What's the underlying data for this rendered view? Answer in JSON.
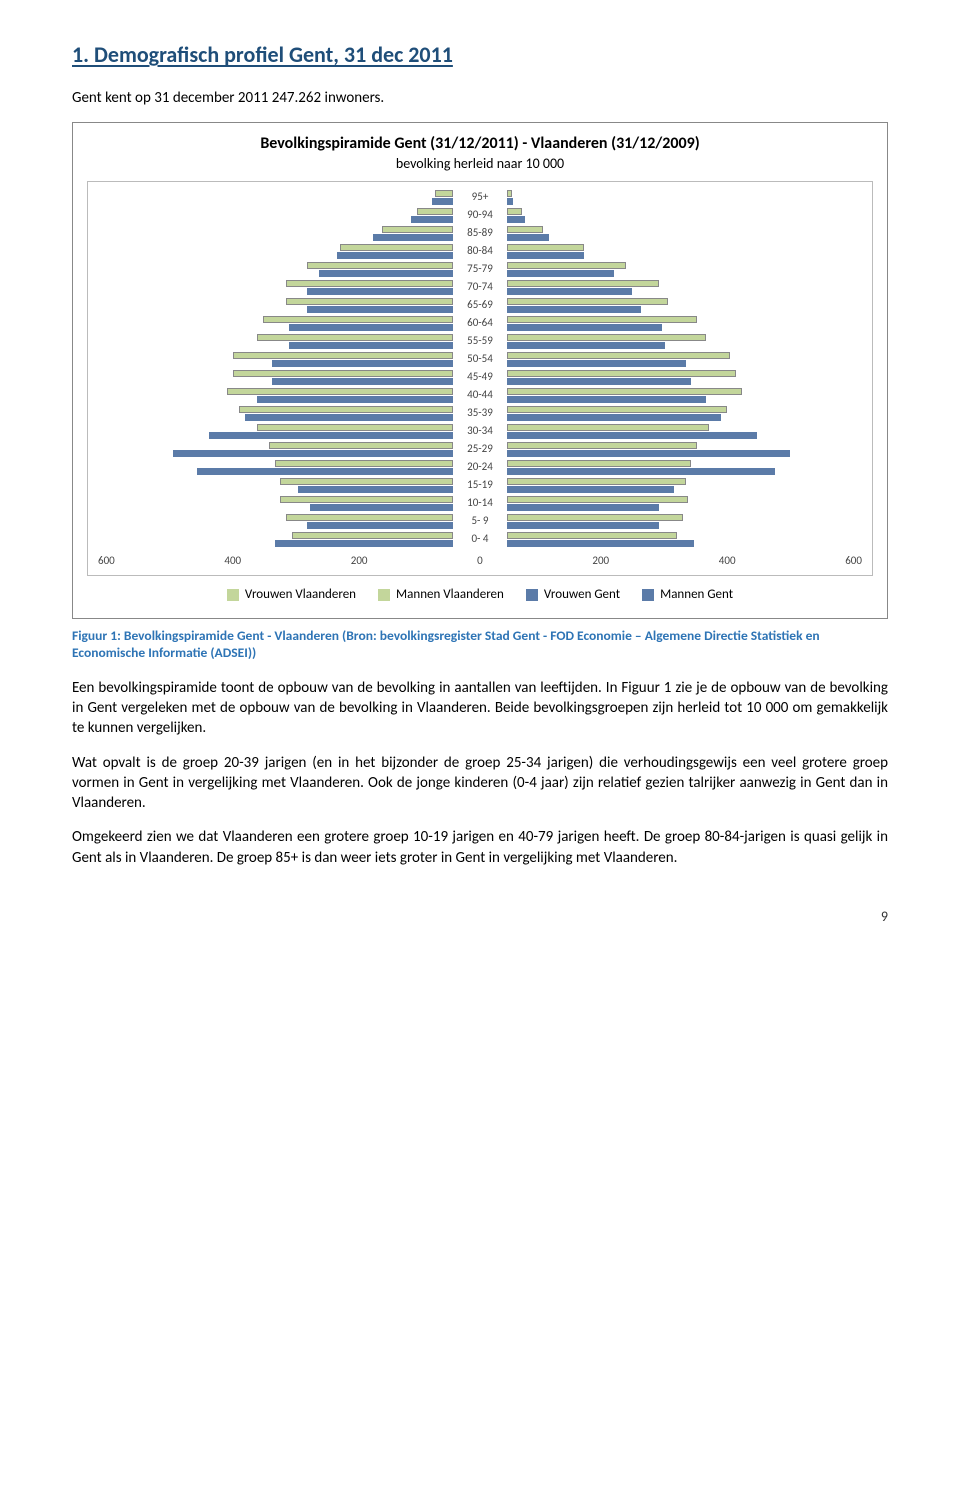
{
  "section": {
    "heading": "1. Demografisch profiel Gent, 31 dec 2011",
    "intro": "Gent kent op 31 december 2011 247.262 inwoners."
  },
  "chart": {
    "type": "population-pyramid",
    "title": "Bevolkingspiramide Gent (31/12/2011) - Vlaanderen (31/12/2009)",
    "subtitle": "bevolking herleid naar 10 000",
    "age_labels": [
      "95+",
      "90-94",
      "85-89",
      "80-84",
      "75-79",
      "70-74",
      "65-69",
      "60-64",
      "55-59",
      "50-54",
      "45-49",
      "40-44",
      "35-39",
      "30-34",
      "25-29",
      "20-24",
      "15-19",
      "10-14",
      "5- 9",
      "0- 4"
    ],
    "axis_ticks": [
      "600",
      "400",
      "200",
      "0",
      "200",
      "400",
      "600"
    ],
    "axis_max": 600,
    "series_colors": {
      "vrouwen_vlaanderen": "#c3d69b",
      "mannen_vlaanderen": "#c3d69b",
      "vrouwen_gent": "#5b7ba8",
      "mannen_gent": "#5b7ba8"
    },
    "bar_border": "#888888",
    "background": "#ffffff",
    "women_vlaanderen": [
      30,
      60,
      120,
      190,
      245,
      280,
      280,
      320,
      330,
      370,
      370,
      380,
      360,
      330,
      310,
      300,
      290,
      290,
      280,
      270
    ],
    "women_gent": [
      35,
      70,
      135,
      195,
      225,
      245,
      245,
      275,
      275,
      305,
      305,
      330,
      350,
      410,
      470,
      430,
      260,
      240,
      245,
      300
    ],
    "men_vlaanderen": [
      8,
      25,
      60,
      130,
      200,
      255,
      270,
      320,
      335,
      375,
      385,
      395,
      370,
      340,
      320,
      310,
      300,
      305,
      295,
      285
    ],
    "men_gent": [
      10,
      30,
      70,
      130,
      180,
      210,
      225,
      260,
      265,
      300,
      310,
      335,
      360,
      420,
      475,
      450,
      280,
      255,
      255,
      315
    ],
    "legend": {
      "vrouwen_vlaanderen": "Vrouwen Vlaanderen",
      "mannen_vlaanderen": "Mannen Vlaanderen",
      "vrouwen_gent": "Vrouwen Gent",
      "mannen_gent": "Mannen Gent"
    }
  },
  "figure_caption": "Figuur 1: Bevolkingspiramide Gent - Vlaanderen (Bron: bevolkingsregister Stad Gent - FOD Economie – Algemene Directie Statistiek en Economische Informatie (ADSEI))",
  "body": {
    "p1": "Een bevolkingspiramide toont de opbouw van de bevolking in aantallen van leeftijden. In Figuur 1 zie je de opbouw van de bevolking in Gent vergeleken met de opbouw van de bevolking in Vlaanderen. Beide bevolkingsgroepen zijn herleid tot 10 000 om gemakkelijk te kunnen vergelijken.",
    "p2": "Wat opvalt is de groep 20-39 jarigen (en in het bijzonder de groep 25-34 jarigen) die verhoudingsgewijs een veel grotere groep vormen in Gent in vergelijking met Vlaanderen. Ook de jonge kinderen (0-4 jaar) zijn relatief gezien talrijker aanwezig in Gent dan in Vlaanderen.",
    "p3": "Omgekeerd zien we dat Vlaanderen een grotere groep 10-19 jarigen en 40-79 jarigen heeft. De groep 80-84-jarigen is quasi gelijk in Gent als in Vlaanderen. De groep 85+ is dan weer iets groter in Gent in vergelijking met Vlaanderen."
  },
  "page_number": "9"
}
